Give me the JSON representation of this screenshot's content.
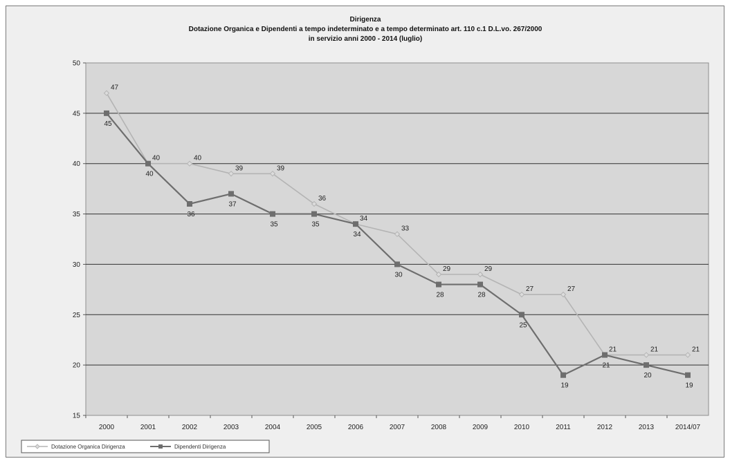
{
  "chart_data": {
    "type": "line",
    "title": [
      "Dirigenza",
      "Dotazione Organica e Dipendenti a tempo indeterminato e a tempo determinato art. 110 c.1 D.L.vo. 267/2000",
      "in servizio anni 2000 - 2014 (luglio)"
    ],
    "categories": [
      "2000",
      "2001",
      "2002",
      "2003",
      "2004",
      "2005",
      "2006",
      "2007",
      "2008",
      "2009",
      "2010",
      "2011",
      "2012",
      "2013",
      "2014/07"
    ],
    "ylim": [
      15,
      50
    ],
    "yticks": [
      15,
      20,
      25,
      30,
      35,
      40,
      45,
      50
    ],
    "grid": true,
    "legend": "bottom-left",
    "series": [
      {
        "name": "Dotazione Organica Dirigenza",
        "values": [
          47,
          40,
          40,
          39,
          39,
          36,
          34,
          33,
          29,
          29,
          27,
          27,
          21,
          21,
          21
        ],
        "color": "#b4b4b4",
        "marker": "diamond"
      },
      {
        "name": "Dipendenti Dirigenza",
        "values": [
          45,
          40,
          36,
          37,
          35,
          35,
          34,
          30,
          28,
          28,
          25,
          19,
          21,
          20,
          19
        ],
        "color": "#6e6e6e",
        "marker": "square"
      }
    ]
  }
}
